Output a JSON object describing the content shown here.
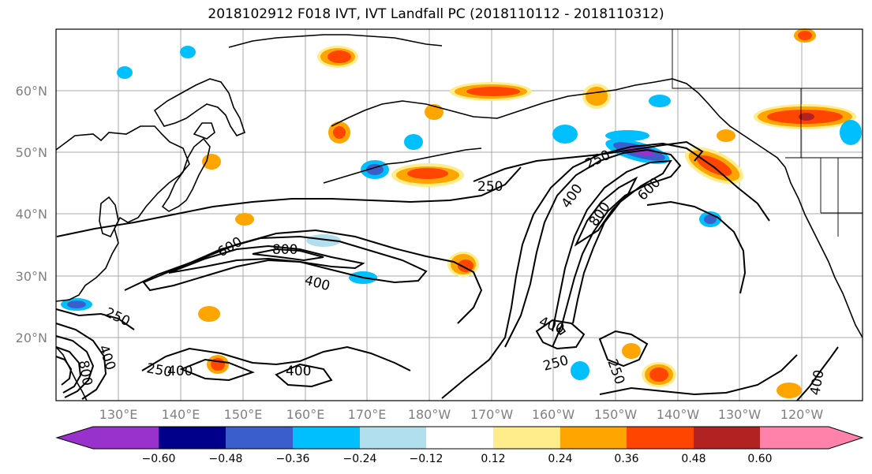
{
  "title": "2018102912 F018 IVT, IVT Landfall PC (2018110112 - 2018110312)",
  "map": {
    "lat_labels": [
      "60°N",
      "50°N",
      "40°N",
      "30°N",
      "20°N"
    ],
    "lon_labels": [
      "130°E",
      "140°E",
      "150°E",
      "160°E",
      "170°E",
      "180°W",
      "170°W",
      "160°W",
      "150°W",
      "140°W",
      "130°W",
      "120°W"
    ],
    "contour_labels": [
      {
        "text": "250",
        "near": "Aleutians / Gulf of Alaska"
      },
      {
        "text": "250",
        "near": "central North Pacific 45N 170W"
      },
      {
        "text": "400",
        "near": "eastern Pacific 40N 155W"
      },
      {
        "text": "800",
        "near": "eastern Pacific 38N 152W"
      },
      {
        "text": "600",
        "near": "eastern Pacific 43N 148W"
      },
      {
        "text": "600",
        "near": "western Pacific 33N 150E"
      },
      {
        "text": "800",
        "near": "western Pacific 32N 158E"
      },
      {
        "text": "400",
        "near": "western Pacific 29N 164E"
      },
      {
        "text": "250",
        "near": "near Taiwan 23N 123E"
      },
      {
        "text": "400",
        "near": "typhoon 20N 128E"
      },
      {
        "text": "800",
        "near": "typhoon 17N 126E"
      },
      {
        "text": "250",
        "near": "subtropical 16N 141E"
      },
      {
        "text": "400",
        "near": "subtropical 16N 145E"
      },
      {
        "text": "400",
        "near": "subtropical 16N 164E"
      },
      {
        "text": "400",
        "near": "subtropical 22N 163W"
      },
      {
        "text": "250",
        "near": "subtropical 17N 158W"
      },
      {
        "text": "250",
        "near": "subtropical 18N 150W"
      },
      {
        "text": "400",
        "near": "subtropical 16N 123W"
      }
    ],
    "colors": {
      "neg_060": "#9932cc",
      "neg_048": "#00008b",
      "neg_036": "#3a5fcd",
      "neg_024": "#00bfff",
      "neg_012": "#b2dfee",
      "zero": "#ffffff",
      "pos_012": "#ffec8b",
      "pos_024": "#ffa500",
      "pos_036": "#ff4500",
      "pos_048": "#b22222",
      "pos_060": "#ff82ab"
    }
  },
  "colorbar": {
    "tick_labels": [
      "−0.60",
      "−0.48",
      "−0.36",
      "−0.24",
      "−0.12",
      "0.12",
      "0.24",
      "0.36",
      "0.48",
      "0.60"
    ],
    "segments": [
      "#9932cc",
      "#00008b",
      "#3a5fcd",
      "#00bfff",
      "#b2dfee",
      "#ffffff",
      "#ffec8b",
      "#ffa500",
      "#ff4500",
      "#b22222",
      "#ff82ab"
    ]
  }
}
